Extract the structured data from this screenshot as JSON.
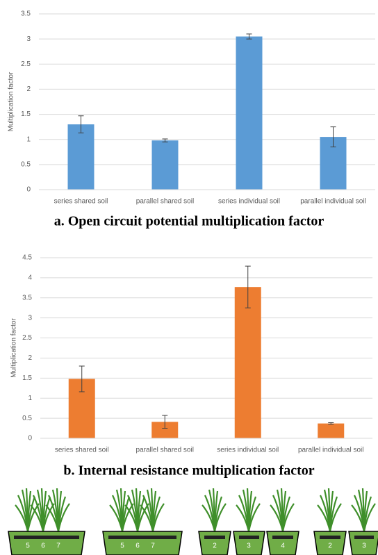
{
  "chart_data": [
    {
      "type": "bar",
      "title": "a. Open circuit potential multiplication factor",
      "y_label": "Multiplication factor",
      "categories": [
        "series shared soil",
        "parallel shared soil",
        "series individual soil",
        "parallel individual soil"
      ],
      "values": [
        1.3,
        0.98,
        3.05,
        1.05
      ],
      "errors": [
        0.17,
        0.03,
        0.05,
        0.2
      ],
      "color": "#5b9bd5",
      "ylim": [
        0,
        3.5
      ],
      "yticks": [
        0,
        0.5,
        1,
        1.5,
        2,
        2.5,
        3,
        3.5
      ],
      "grid": true
    },
    {
      "type": "bar",
      "title": "b. Internal resistance multiplication factor",
      "y_label": "Multiplication factor",
      "categories": [
        "series shared soil",
        "parallel shared soil",
        "series individual soil",
        "parallel individual soil"
      ],
      "values": [
        1.48,
        0.41,
        3.77,
        0.37
      ],
      "errors": [
        0.32,
        0.16,
        0.52,
        0.02
      ],
      "color": "#ed7d31",
      "ylim": [
        0,
        4.5
      ],
      "yticks": [
        0,
        0.5,
        1,
        1.5,
        2,
        2.5,
        3,
        3.5,
        4,
        4.5
      ],
      "grid": true
    }
  ],
  "illustrations": [
    {
      "labels": [
        "5",
        "6",
        "7"
      ]
    },
    {
      "labels": [
        "5",
        "6",
        "7"
      ]
    },
    {
      "labels": [
        "2",
        "3",
        "4"
      ]
    },
    {
      "labels": [
        "2",
        "3"
      ]
    }
  ]
}
